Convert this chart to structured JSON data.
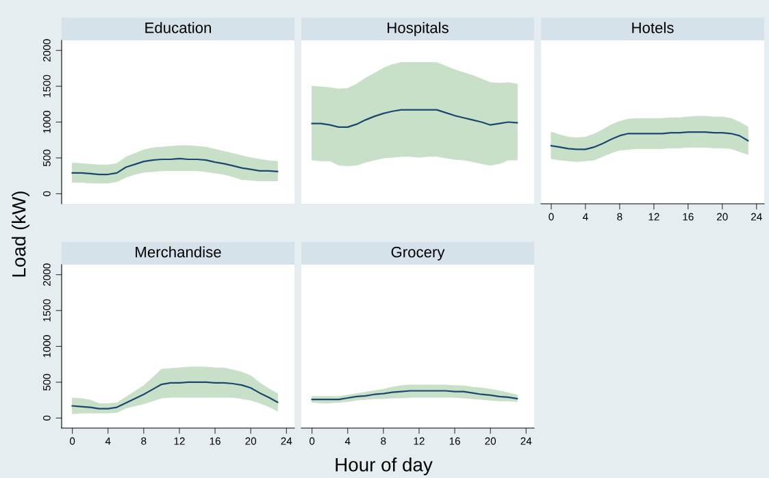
{
  "chart_data": [
    {
      "type": "line",
      "title": "Education",
      "ylabel": "Load (kW)",
      "x": [
        0,
        1,
        2,
        3,
        4,
        5,
        6,
        7,
        8,
        9,
        10,
        11,
        12,
        13,
        14,
        15,
        16,
        17,
        18,
        19,
        20,
        21,
        22,
        23
      ],
      "xlim": [
        -1.2,
        24.9
      ],
      "ylim": [
        -140,
        2140
      ],
      "xticks": [
        0,
        4,
        8,
        12,
        16,
        20,
        24
      ],
      "yticks": [
        0,
        500,
        1000,
        1500,
        2000
      ],
      "tick_labels": "y",
      "grid": false,
      "legend": false,
      "series": [
        {
          "color": "#1a476f",
          "values": [
            290,
            290,
            280,
            270,
            270,
            290,
            370,
            410,
            450,
            470,
            480,
            480,
            490,
            480,
            480,
            470,
            440,
            420,
            390,
            360,
            340,
            320,
            320,
            310
          ],
          "lower": [
            160,
            160,
            150,
            150,
            150,
            170,
            230,
            270,
            300,
            310,
            320,
            320,
            320,
            320,
            320,
            310,
            290,
            270,
            240,
            200,
            190,
            180,
            180,
            180
          ],
          "upper": [
            430,
            420,
            410,
            400,
            400,
            420,
            510,
            560,
            610,
            640,
            650,
            660,
            670,
            670,
            660,
            650,
            620,
            590,
            560,
            530,
            500,
            480,
            460,
            450
          ]
        }
      ]
    },
    {
      "type": "line",
      "title": "Hospitals",
      "x": [
        0,
        1,
        2,
        3,
        4,
        5,
        6,
        7,
        8,
        9,
        10,
        11,
        12,
        13,
        14,
        15,
        16,
        17,
        18,
        19,
        20,
        21,
        22,
        23
      ],
      "xlim": [
        -1.2,
        24.9
      ],
      "ylim": [
        -140,
        2140
      ],
      "xticks": [
        0,
        4,
        8,
        12,
        16,
        20,
        24
      ],
      "yticks": [
        0,
        500,
        1000,
        1500,
        2000
      ],
      "tick_labels": false,
      "grid": false,
      "legend": false,
      "series": [
        {
          "color": "#1a476f",
          "values": [
            980,
            980,
            960,
            930,
            930,
            970,
            1030,
            1080,
            1120,
            1150,
            1170,
            1170,
            1170,
            1170,
            1170,
            1130,
            1090,
            1060,
            1030,
            1000,
            960,
            980,
            1000,
            990
          ],
          "lower": [
            470,
            460,
            460,
            400,
            390,
            400,
            440,
            470,
            500,
            510,
            520,
            520,
            510,
            520,
            520,
            500,
            480,
            470,
            450,
            420,
            400,
            420,
            470,
            470
          ],
          "upper": [
            1500,
            1490,
            1480,
            1460,
            1470,
            1530,
            1610,
            1680,
            1750,
            1800,
            1830,
            1830,
            1830,
            1830,
            1830,
            1780,
            1730,
            1690,
            1650,
            1600,
            1550,
            1540,
            1550,
            1530
          ]
        }
      ]
    },
    {
      "type": "line",
      "title": "Hotels",
      "x": [
        0,
        1,
        2,
        3,
        4,
        5,
        6,
        7,
        8,
        9,
        10,
        11,
        12,
        13,
        14,
        15,
        16,
        17,
        18,
        19,
        20,
        21,
        22,
        23
      ],
      "xlim": [
        -1.2,
        24.9
      ],
      "ylim": [
        -140,
        2140
      ],
      "xticks": [
        0,
        4,
        8,
        12,
        16,
        20,
        24
      ],
      "yticks": [
        0,
        500,
        1000,
        1500,
        2000
      ],
      "tick_labels": "x",
      "grid": false,
      "legend": false,
      "series": [
        {
          "color": "#1a476f",
          "values": [
            670,
            650,
            630,
            620,
            620,
            650,
            700,
            760,
            810,
            840,
            840,
            840,
            840,
            840,
            850,
            850,
            860,
            860,
            860,
            850,
            850,
            840,
            810,
            740
          ],
          "lower": [
            490,
            470,
            460,
            450,
            460,
            470,
            520,
            570,
            610,
            620,
            630,
            630,
            630,
            630,
            640,
            640,
            650,
            650,
            650,
            640,
            640,
            630,
            590,
            550
          ],
          "upper": [
            860,
            820,
            790,
            780,
            790,
            830,
            890,
            960,
            1010,
            1040,
            1050,
            1050,
            1050,
            1050,
            1060,
            1060,
            1070,
            1080,
            1080,
            1070,
            1070,
            1050,
            1000,
            930
          ]
        }
      ]
    },
    {
      "type": "line",
      "title": "Merchandise",
      "x": [
        0,
        1,
        2,
        3,
        4,
        5,
        6,
        7,
        8,
        9,
        10,
        11,
        12,
        13,
        14,
        15,
        16,
        17,
        18,
        19,
        20,
        21,
        22,
        23
      ],
      "xlim": [
        -1.2,
        24.9
      ],
      "ylim": [
        -140,
        2140
      ],
      "xticks": [
        0,
        4,
        8,
        12,
        16,
        20,
        24
      ],
      "yticks": [
        0,
        500,
        1000,
        1500,
        2000
      ],
      "grid": false,
      "legend": false,
      "series": [
        {
          "color": "#1a476f",
          "values": [
            170,
            160,
            150,
            130,
            130,
            150,
            210,
            270,
            330,
            400,
            470,
            490,
            490,
            500,
            500,
            500,
            490,
            490,
            480,
            460,
            420,
            350,
            290,
            220
          ],
          "lower": [
            60,
            70,
            70,
            70,
            70,
            80,
            140,
            170,
            200,
            240,
            280,
            290,
            290,
            290,
            290,
            290,
            290,
            290,
            290,
            270,
            250,
            210,
            160,
            100
          ],
          "upper": [
            280,
            270,
            250,
            200,
            200,
            210,
            290,
            370,
            450,
            560,
            680,
            690,
            700,
            710,
            710,
            710,
            700,
            700,
            670,
            640,
            590,
            490,
            410,
            340
          ]
        }
      ]
    },
    {
      "type": "line",
      "title": "Grocery",
      "xlabel": "Hour of day",
      "x": [
        0,
        1,
        2,
        3,
        4,
        5,
        6,
        7,
        8,
        9,
        10,
        11,
        12,
        13,
        14,
        15,
        16,
        17,
        18,
        19,
        20,
        21,
        22,
        23
      ],
      "xlim": [
        -1.2,
        24.9
      ],
      "ylim": [
        -140,
        2140
      ],
      "xticks": [
        0,
        4,
        8,
        12,
        16,
        20,
        24
      ],
      "yticks": [
        0,
        500,
        1000,
        1500,
        2000
      ],
      "tick_labels": "x",
      "grid": false,
      "legend": false,
      "series": [
        {
          "color": "#1a476f",
          "values": [
            260,
            260,
            260,
            260,
            280,
            300,
            310,
            330,
            340,
            360,
            370,
            380,
            380,
            380,
            380,
            380,
            370,
            370,
            350,
            330,
            320,
            300,
            290,
            270
          ],
          "lower": [
            220,
            210,
            210,
            220,
            230,
            250,
            260,
            270,
            270,
            280,
            280,
            290,
            290,
            290,
            290,
            290,
            290,
            280,
            270,
            260,
            250,
            240,
            240,
            230
          ],
          "upper": [
            300,
            300,
            300,
            300,
            320,
            340,
            360,
            380,
            400,
            430,
            450,
            460,
            460,
            460,
            460,
            460,
            450,
            450,
            430,
            420,
            400,
            380,
            350,
            320
          ]
        }
      ]
    }
  ]
}
